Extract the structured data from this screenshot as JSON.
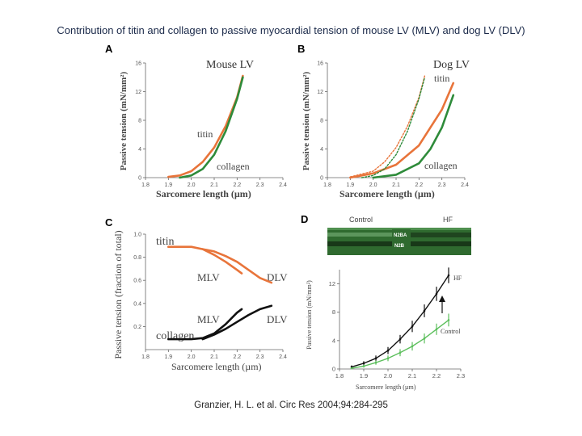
{
  "title": "Contribution of titin and collagen to passive myocardial tension of mouse LV (MLV) and dog LV (DLV)",
  "citation": "Granzier, H. L. et al. Circ Res 2004;94:284-295",
  "colors": {
    "titin": "#e8743a",
    "collagen": "#2e8b3a",
    "black": "#111111",
    "control": "#5cbf5c",
    "band_bg": "#2f6a2f"
  },
  "chart_data": [
    {
      "panel": "A",
      "type": "line",
      "title": "Mouse LV",
      "xlabel": "Sarcomere length (µm)",
      "ylabel": "Passive tension (mN/mm²)",
      "xlim": [
        1.8,
        2.4
      ],
      "ylim": [
        0,
        16
      ],
      "xticks": [
        "1.8",
        "1.9",
        "2.0",
        "2.1",
        "2.2",
        "2.3",
        "2.4"
      ],
      "yticks": [
        "0",
        "4",
        "8",
        "12",
        "16"
      ],
      "series": [
        {
          "name": "titin",
          "color": "#e8743a",
          "x": [
            1.9,
            1.95,
            2.0,
            2.05,
            2.1,
            2.15,
            2.2,
            2.225
          ],
          "y": [
            0.1,
            0.3,
            0.9,
            2.2,
            4.2,
            7.2,
            11.2,
            14.2
          ]
        },
        {
          "name": "collagen",
          "color": "#2e8b3a",
          "x": [
            1.95,
            2.0,
            2.05,
            2.1,
            2.15,
            2.2,
            2.225
          ],
          "y": [
            0,
            0.3,
            1.2,
            3.2,
            6.5,
            11.0,
            14.0
          ]
        }
      ],
      "annotations": [
        "titin",
        "collagen"
      ]
    },
    {
      "panel": "B",
      "type": "line",
      "title": "Dog LV",
      "xlabel": "Sarcomere length (µm)",
      "ylabel": "Passive tension (mN/mm²)",
      "xlim": [
        1.8,
        2.4
      ],
      "ylim": [
        0,
        16
      ],
      "xticks": [
        "1.8",
        "1.9",
        "2.0",
        "2.1",
        "2.2",
        "2.3",
        "2.4"
      ],
      "yticks": [
        "0",
        "4",
        "8",
        "12",
        "16"
      ],
      "series": [
        {
          "name": "titin",
          "color": "#e8743a",
          "x": [
            1.9,
            2.0,
            2.1,
            2.2,
            2.3,
            2.35
          ],
          "y": [
            0,
            0.6,
            1.8,
            4.5,
            9.5,
            13.2
          ]
        },
        {
          "name": "collagen",
          "color": "#2e8b3a",
          "x": [
            2.0,
            2.1,
            2.2,
            2.25,
            2.3,
            2.35
          ],
          "y": [
            0,
            0.4,
            2.0,
            4.0,
            7.0,
            11.5
          ]
        },
        {
          "name": "titin (mouse, dotted)",
          "color": "#e8743a",
          "dashed": true,
          "x": [
            1.9,
            2.0,
            2.05,
            2.1,
            2.15,
            2.2,
            2.225
          ],
          "y": [
            0.1,
            0.9,
            2.2,
            4.2,
            7.2,
            11.2,
            14.2
          ]
        },
        {
          "name": "collagen (mouse, dotted)",
          "color": "#2e8b3a",
          "dashed": true,
          "x": [
            1.95,
            2.0,
            2.05,
            2.1,
            2.15,
            2.2,
            2.225
          ],
          "y": [
            0,
            0.3,
            1.2,
            3.2,
            6.5,
            11.0,
            14.0
          ]
        }
      ],
      "annotations": [
        "titin",
        "collagen"
      ]
    },
    {
      "panel": "C",
      "type": "line",
      "xlabel": "Sarcomere length (µm)",
      "ylabel": "Passive tension (fraction of total)",
      "xlim": [
        1.8,
        2.4
      ],
      "ylim": [
        0,
        1.0
      ],
      "xticks": [
        "1.8",
        "1.9",
        "2.0",
        "2.1",
        "2.2",
        "2.3",
        "2.4"
      ],
      "yticks": [
        "0.2",
        "0.4",
        "0.6",
        "0.8",
        "1.0"
      ],
      "series": [
        {
          "name": "titin MLV",
          "color": "#e8743a",
          "x": [
            1.9,
            1.95,
            2.0,
            2.05,
            2.1,
            2.15,
            2.2,
            2.22
          ],
          "y": [
            0.89,
            0.89,
            0.89,
            0.87,
            0.82,
            0.76,
            0.69,
            0.66
          ]
        },
        {
          "name": "titin DLV",
          "color": "#e8743a",
          "x": [
            2.05,
            2.1,
            2.15,
            2.2,
            2.25,
            2.3,
            2.35
          ],
          "y": [
            0.87,
            0.85,
            0.81,
            0.76,
            0.69,
            0.62,
            0.58
          ]
        },
        {
          "name": "collagen MLV",
          "color": "#111111",
          "x": [
            1.9,
            2.0,
            2.05,
            2.1,
            2.15,
            2.2,
            2.22
          ],
          "y": [
            0.09,
            0.09,
            0.1,
            0.14,
            0.22,
            0.32,
            0.35
          ]
        },
        {
          "name": "collagen DLV",
          "color": "#111111",
          "x": [
            2.05,
            2.1,
            2.15,
            2.2,
            2.25,
            2.3,
            2.35
          ],
          "y": [
            0.09,
            0.13,
            0.18,
            0.24,
            0.3,
            0.35,
            0.38
          ]
        }
      ],
      "annotations": [
        "titin",
        "MLV",
        "DLV",
        "MLV",
        "DLV",
        "collagen"
      ]
    },
    {
      "panel": "D",
      "type": "line",
      "gel": {
        "left_label": "Control",
        "right_label": "HF",
        "band_labels": [
          "N2BA",
          "N2B"
        ]
      },
      "xlabel": "Sarcomere length (µm)",
      "ylabel": "Passive tension (mN/mm²)",
      "xlim": [
        1.8,
        2.3
      ],
      "ylim": [
        0,
        14
      ],
      "xticks": [
        "1.8",
        "1.9",
        "2.0",
        "2.1",
        "2.2",
        "2.3"
      ],
      "yticks": [
        "0",
        "4",
        "8",
        "12"
      ],
      "series": [
        {
          "name": "HF",
          "color": "#111111",
          "x": [
            1.85,
            1.9,
            1.95,
            2.0,
            2.05,
            2.1,
            2.15,
            2.2,
            2.25
          ],
          "y": [
            0.3,
            0.8,
            1.5,
            2.6,
            4.2,
            6.0,
            8.2,
            10.6,
            13.2
          ],
          "err": [
            0.2,
            0.3,
            0.4,
            0.5,
            0.6,
            0.8,
            0.9,
            1.0,
            1.1
          ]
        },
        {
          "name": "Control",
          "color": "#5cbf5c",
          "x": [
            1.85,
            1.9,
            1.95,
            2.0,
            2.05,
            2.1,
            2.15,
            2.2,
            2.25
          ],
          "y": [
            0.1,
            0.4,
            0.9,
            1.5,
            2.3,
            3.2,
            4.3,
            5.6,
            6.9
          ],
          "err": [
            0.1,
            0.2,
            0.3,
            0.4,
            0.5,
            0.6,
            0.7,
            0.8,
            0.9
          ]
        }
      ],
      "annotations": [
        "HF",
        "Control"
      ]
    }
  ]
}
